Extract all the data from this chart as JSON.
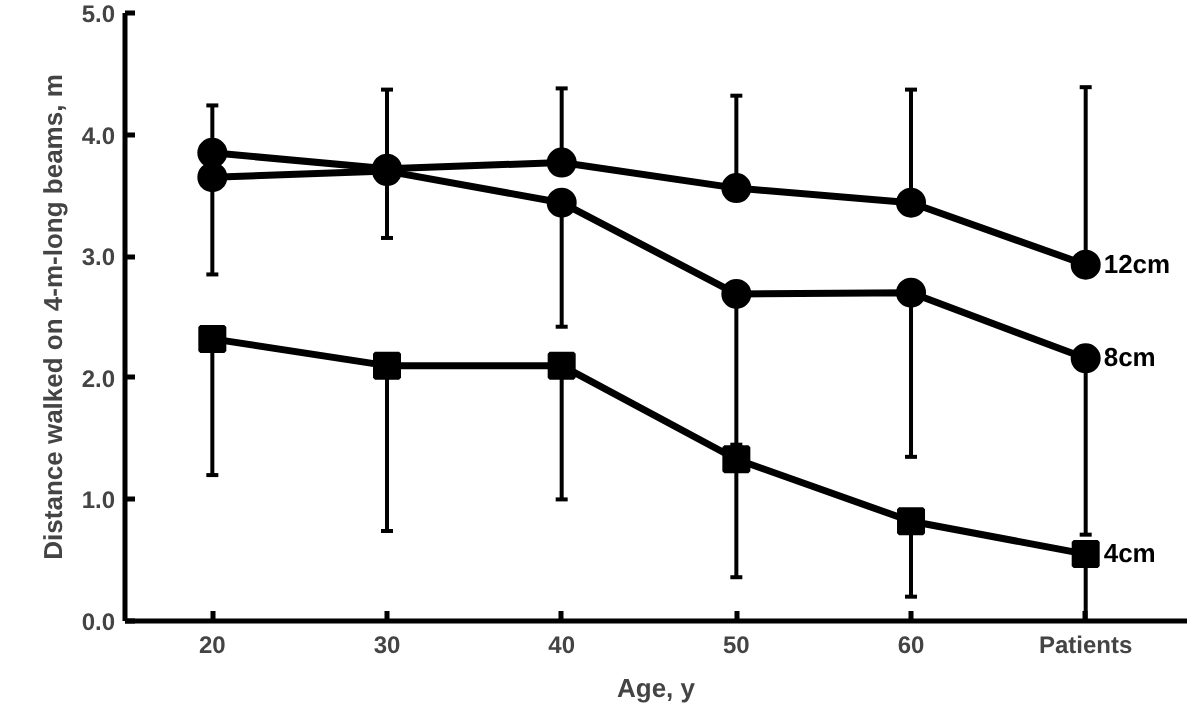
{
  "chart_data": {
    "type": "line",
    "xlabel": "Age, y",
    "ylabel": "Distance walked on 4-m-long beams, m",
    "categories": [
      "20",
      "30",
      "40",
      "50",
      "60",
      "Patients"
    ],
    "ylim": [
      0,
      5
    ],
    "yticks": [
      {
        "value": 0,
        "label": "0.0"
      },
      {
        "value": 1,
        "label": "1.0"
      },
      {
        "value": 2,
        "label": "2.0"
      },
      {
        "value": 3,
        "label": "3.0"
      },
      {
        "value": 4,
        "label": "4.0"
      },
      {
        "value": 5,
        "label": "5.0"
      }
    ],
    "grid": false,
    "legend": false,
    "line_style": "solid",
    "series": [
      {
        "name": "12cm",
        "color": "#000000",
        "marker": "circle",
        "values": [
          3.85,
          3.72,
          3.77,
          3.56,
          3.44,
          2.93
        ],
        "errors": [
          [
            3.85,
            4.24
          ],
          [
            3.72,
            4.37
          ],
          [
            3.77,
            4.38
          ],
          [
            3.56,
            4.32
          ],
          [
            3.44,
            4.37
          ],
          [
            2.93,
            4.39
          ]
        ]
      },
      {
        "name": "8cm",
        "color": "#000000",
        "marker": "circle",
        "values": [
          3.65,
          3.7,
          3.44,
          2.69,
          2.7,
          2.16
        ],
        "errors": [
          [
            2.85,
            3.65
          ],
          [
            3.15,
            3.7
          ],
          [
            2.42,
            3.44
          ],
          [
            1.45,
            2.69
          ],
          [
            1.35,
            2.7
          ],
          [
            0.71,
            2.16
          ]
        ]
      },
      {
        "name": "4cm",
        "color": "#000000",
        "marker": "square",
        "values": [
          2.32,
          2.1,
          2.1,
          1.33,
          0.82,
          0.55
        ],
        "errors": [
          [
            1.2,
            2.32
          ],
          [
            0.74,
            2.1
          ],
          [
            1.0,
            2.1
          ],
          [
            0.36,
            1.33
          ],
          [
            0.2,
            0.82
          ],
          [
            0.0,
            0.55
          ]
        ]
      }
    ]
  }
}
